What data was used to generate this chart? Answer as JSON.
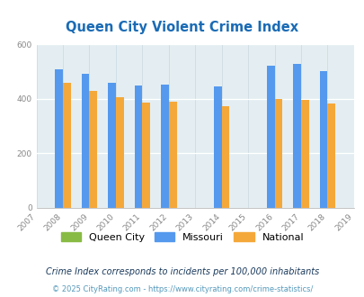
{
  "title": "Queen City Violent Crime Index",
  "all_years": [
    2007,
    2008,
    2009,
    2010,
    2011,
    2012,
    2013,
    2014,
    2015,
    2016,
    2017,
    2018,
    2019
  ],
  "bar_years": [
    2008,
    2009,
    2010,
    2011,
    2012,
    2014,
    2016,
    2017,
    2018
  ],
  "missouri": [
    510,
    492,
    460,
    450,
    453,
    447,
    522,
    528,
    502
  ],
  "national": [
    458,
    430,
    405,
    388,
    390,
    372,
    400,
    397,
    383
  ],
  "bar_color_missouri": "#5599ee",
  "bar_color_national": "#f5a83a",
  "bar_color_queen_city": "#88bb44",
  "bg_color": "#e4eef2",
  "ylim": [
    0,
    600
  ],
  "yticks": [
    0,
    200,
    400,
    600
  ],
  "legend_labels": [
    "Queen City",
    "Missouri",
    "National"
  ],
  "footnote1": "Crime Index corresponds to incidents per 100,000 inhabitants",
  "footnote2": "© 2025 CityRating.com - https://www.cityrating.com/crime-statistics/",
  "title_color": "#1a6bb5",
  "footnote1_color": "#1a3a5c",
  "footnote2_color": "#5599bb",
  "grid_color": "#c8d8e0",
  "tick_color": "#888888"
}
